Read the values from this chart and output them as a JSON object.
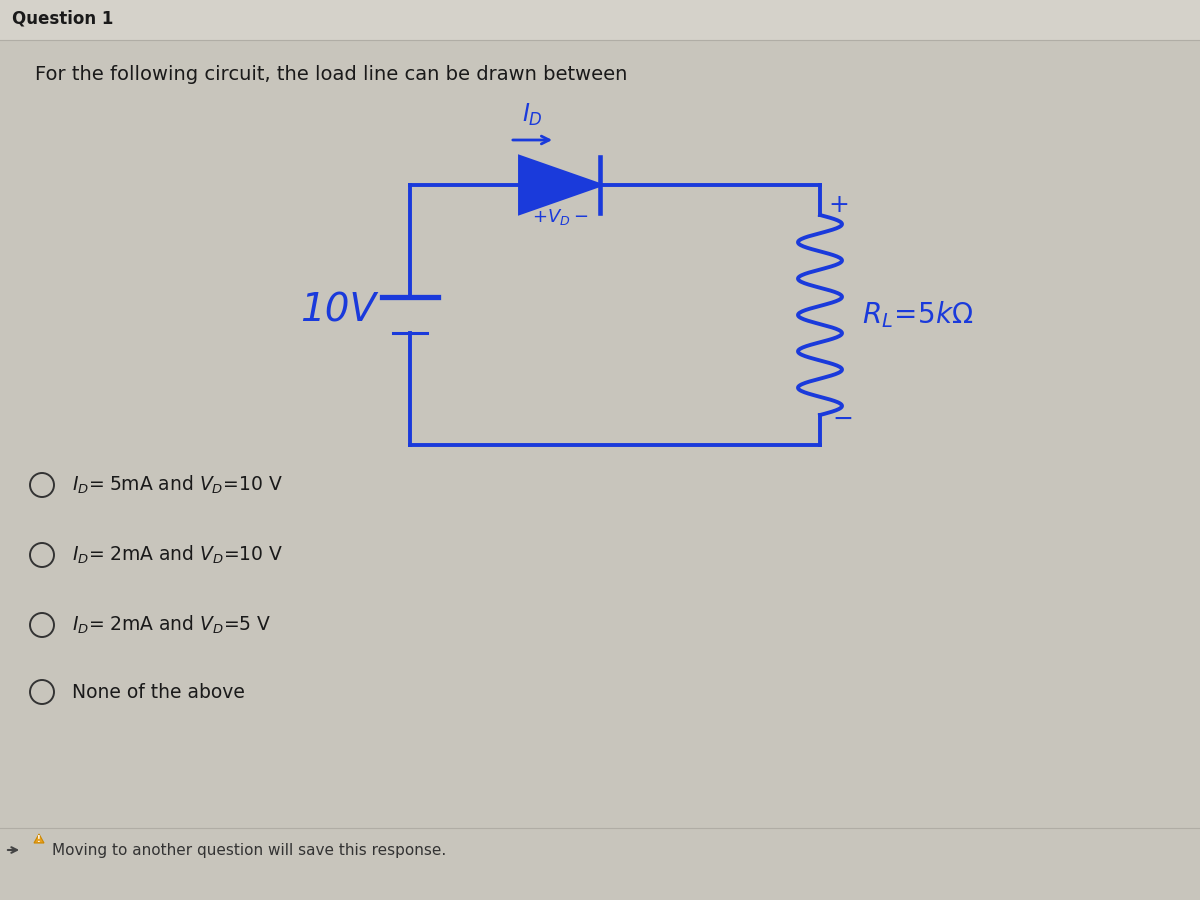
{
  "title": "Question 1",
  "question_text": "For the following circuit, the load line can be drawn between",
  "bg_color": "#c8c5bc",
  "text_color": "#1a1a1a",
  "circuit_color": "#1a3adb",
  "title_color": "#1a1a1a",
  "fig_width": 12,
  "fig_height": 9,
  "opt1": "ID= 5mA and VD=10 V",
  "opt2": "ID= 2mA and VD=10 V",
  "opt3": "ID= 2mA and VD=5 V",
  "opt4": "None of the above",
  "footer_arrow": "→",
  "footer_warning": "⚠",
  "footer_text": "Moving to another question will save this response."
}
